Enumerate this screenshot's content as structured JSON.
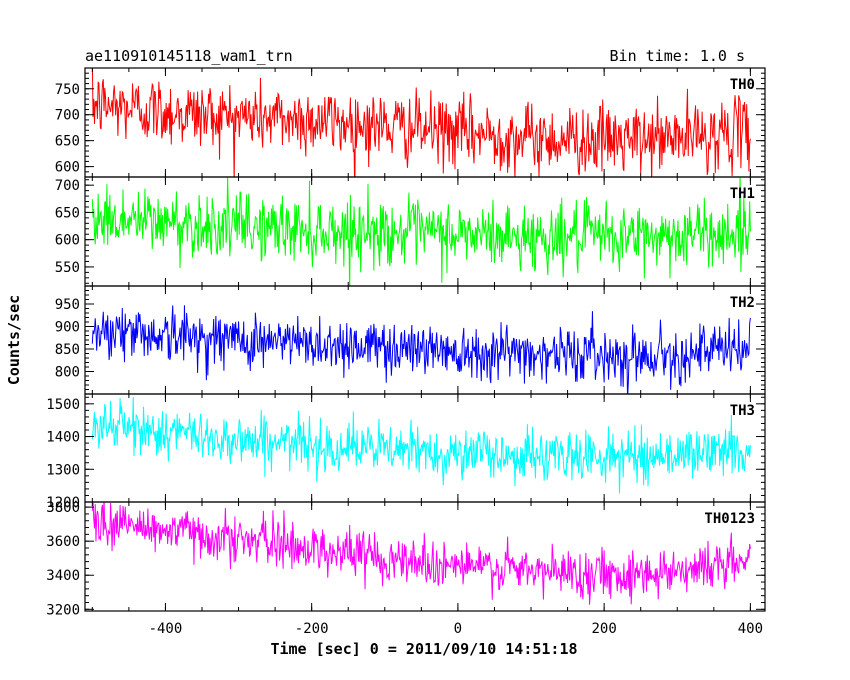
{
  "header": {
    "left": "ae110910145118_wam1_trn",
    "right": "Bin time: 1.0 s"
  },
  "chart_data": {
    "type": "line",
    "title": "ae110910145118_wam1_trn",
    "xlabel": "Time [sec] 0 = 2011/09/10 14:51:18",
    "ylabel": "Counts/sec",
    "xlim": [
      -510,
      420
    ],
    "x_start": -500,
    "x_end": 400,
    "x_step": 1,
    "x_ticks": [
      -400,
      -200,
      0,
      200,
      400
    ],
    "grid": false,
    "panels": [
      {
        "name": "TH0",
        "color": "#ff0000",
        "ylim": [
          580,
          790
        ],
        "y_ticks": [
          600,
          650,
          700,
          750
        ],
        "trend": [
          720,
          700,
          690,
          672,
          655,
          650,
          668
        ],
        "noise_sd": 33
      },
      {
        "name": "TH1",
        "color": "#00ff00",
        "ylim": [
          515,
          715
        ],
        "y_ticks": [
          550,
          600,
          650,
          700
        ],
        "trend": [
          640,
          628,
          618,
          612,
          605,
          605,
          615
        ],
        "noise_sd": 30
      },
      {
        "name": "TH2",
        "color": "#0000ff",
        "ylim": [
          750,
          990
        ],
        "y_ticks": [
          800,
          850,
          900,
          950
        ],
        "trend": [
          895,
          875,
          862,
          852,
          842,
          835,
          850
        ],
        "noise_sd": 30
      },
      {
        "name": "TH3",
        "color": "#00ffff",
        "ylim": [
          1200,
          1530
        ],
        "y_ticks": [
          1200,
          1300,
          1400,
          1500
        ],
        "trend": [
          1440,
          1400,
          1375,
          1355,
          1340,
          1340,
          1360
        ],
        "noise_sd": 38
      },
      {
        "name": "TH0123",
        "color": "#ff00ff",
        "ylim": [
          3190,
          3830
        ],
        "y_ticks": [
          3200,
          3400,
          3600,
          3800
        ],
        "trend": [
          3720,
          3640,
          3560,
          3480,
          3420,
          3410,
          3480
        ],
        "noise_sd": 70
      }
    ]
  }
}
